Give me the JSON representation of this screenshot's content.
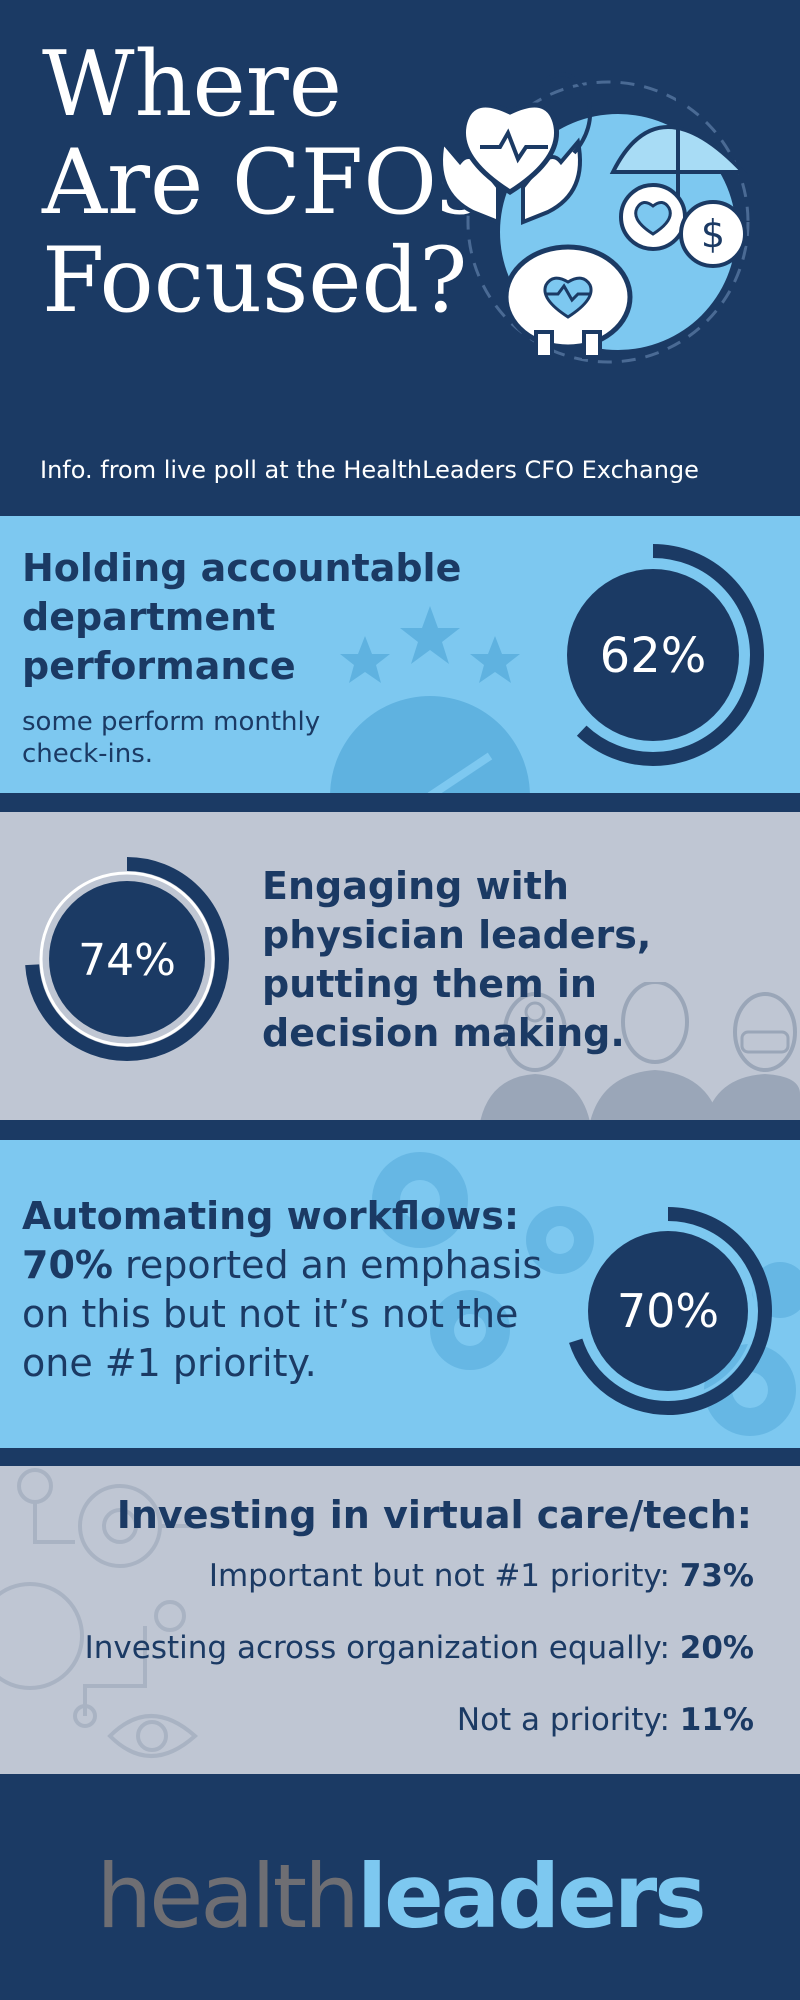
{
  "header": {
    "title": "Where Are CFOs Focused?",
    "subtitle": "Info. from live poll at the HealthLeaders CFO Exchange"
  },
  "sections": [
    {
      "heading": "Holding accountable department performance",
      "note": "some perform monthly check-ins.",
      "percent_label": "62%",
      "percent": 62
    },
    {
      "heading": "Engaging with physician leaders, putting them in decision making.",
      "percent_label": "74%",
      "percent": 74
    },
    {
      "heading": "Automating workflows:",
      "highlight": "70%",
      "text": " reported an emphasis on this but not it’s not the one #1 priority.",
      "percent_label": "70%",
      "percent": 70
    },
    {
      "heading": "Investing in virtual care/tech:",
      "stats": [
        {
          "label": "Important but not #1 priority: ",
          "value": "73%"
        },
        {
          "label": "Investing across organization equally: ",
          "value": "20%"
        },
        {
          "label": "Not a priority: ",
          "value": "11%"
        }
      ]
    }
  ],
  "footer": {
    "logo_part1": "health",
    "logo_part2": "leaders"
  },
  "colors": {
    "navy": "#1b3a64",
    "light_blue": "#7dc8f0",
    "gray": "#bfc6d3",
    "logo_gray": "#6e6e73"
  },
  "chart_data": {
    "type": "table",
    "series": [
      {
        "name": "Holding accountable department performance",
        "values": [
          62
        ]
      },
      {
        "name": "Engaging with physician leaders, putting them in decision making.",
        "values": [
          74
        ]
      },
      {
        "name": "Automating workflows:",
        "values": [
          70
        ]
      },
      {
        "name": "Important but not #1 priority: ",
        "values": [
          73
        ]
      },
      {
        "name": "Investing across organization equally: ",
        "values": [
          20
        ]
      },
      {
        "name": "Not a priority: ",
        "values": [
          11
        ]
      }
    ],
    "unit": "%"
  }
}
